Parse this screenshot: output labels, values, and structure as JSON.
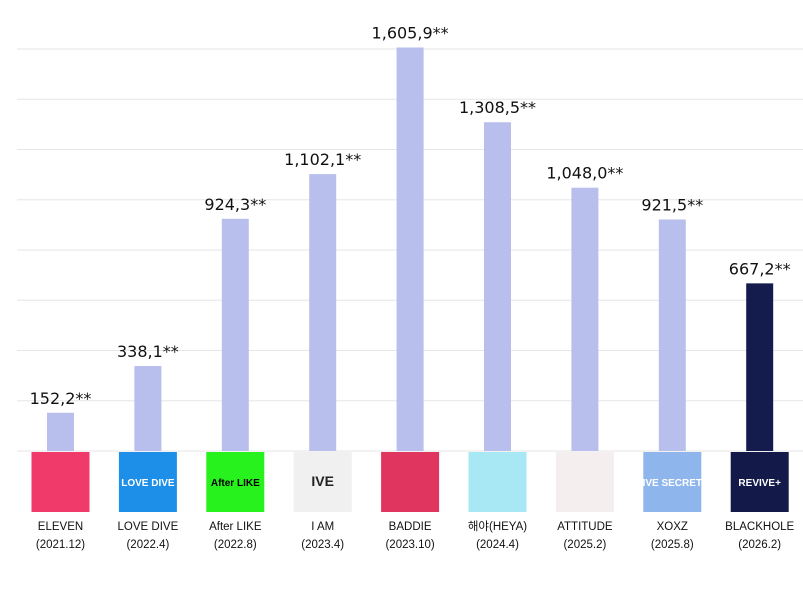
{
  "chart_data": {
    "type": "bar",
    "categories": [
      "ELEVEN",
      "LOVE DIVE",
      "After LIKE",
      "I AM",
      "BADDIE",
      "해야(HEYA)",
      "ATTITUDE",
      "XOXZ",
      "BLACKHOLE"
    ],
    "dates": [
      "(2021.12)",
      "(2022.4)",
      "(2022.8)",
      "(2023.4)",
      "(2023.10)",
      "(2024.4)",
      "(2025.2)",
      "(2025.8)",
      "(2026.2)"
    ],
    "values": [
      152.2,
      338.1,
      924.3,
      1102.1,
      1605.9,
      1308.5,
      1048.0,
      921.5,
      667.2
    ],
    "data_labels": [
      "152,2**",
      "338,1**",
      "924,3**",
      "1,102,1**",
      "1,605,9**",
      "1,308,5**",
      "1,048,0**",
      "921,5**",
      "667,2**"
    ],
    "ylim": [
      0,
      1600
    ],
    "grid": true,
    "highlight_index": 8,
    "colors": {
      "bar": "#b8bfec",
      "highlight": "#141c4e",
      "grid": "#e6e6e6"
    },
    "album_cover_colors": [
      "#ef3a6a",
      "#1e8fe8",
      "#27f21e",
      "#f0f0f0",
      "#e0355f",
      "#a8e8f5",
      "#f4eeee",
      "#8fb6ec",
      "#131a4a"
    ],
    "album_cover_text": [
      "",
      "LOVE DIVE",
      "After LIKE",
      "IVE",
      "",
      "",
      "",
      "IVE SECRET",
      "REVIVE+"
    ]
  }
}
